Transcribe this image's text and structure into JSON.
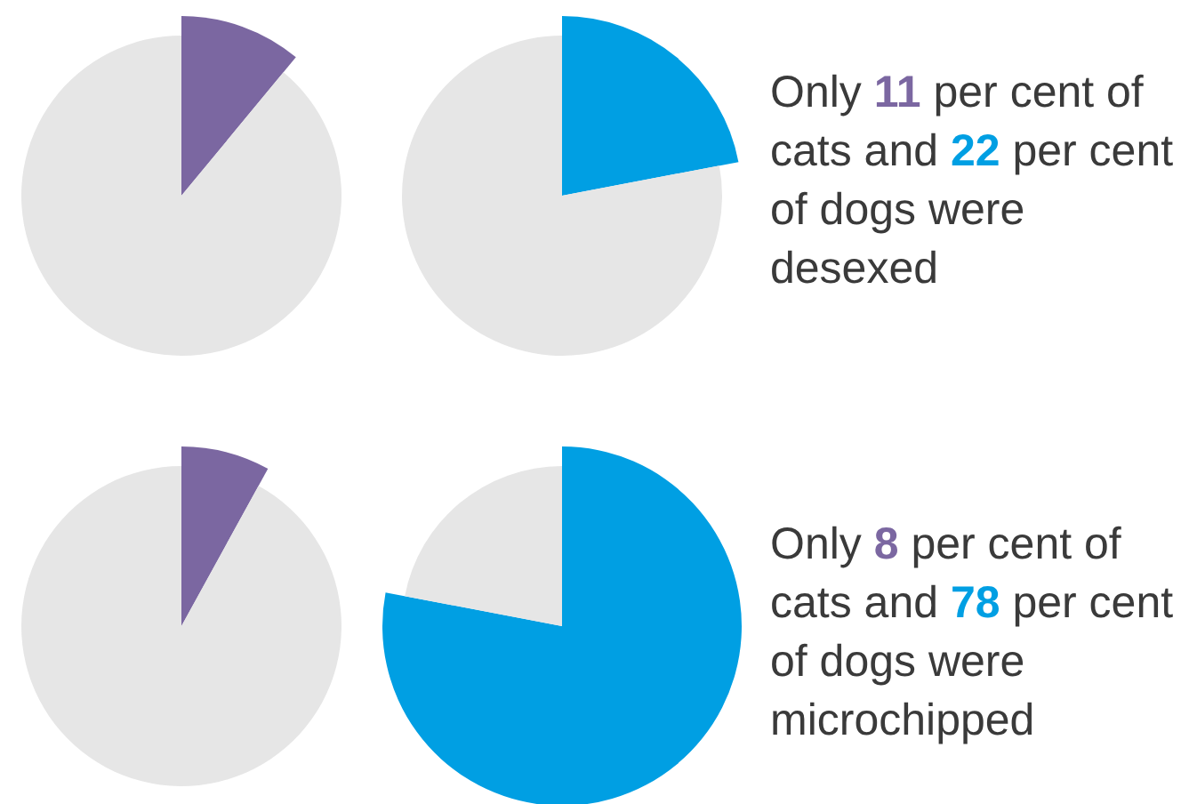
{
  "chart_data": [
    {
      "type": "pie",
      "categories": [
        null,
        null
      ],
      "values": [
        11,
        89
      ],
      "colors": [
        "#7b67a1",
        "#e6e6e6"
      ]
    },
    {
      "type": "pie",
      "categories": [
        null,
        null
      ],
      "values": [
        22,
        78
      ],
      "colors": [
        "#009fe3",
        "#e6e6e6"
      ]
    },
    {
      "type": "other",
      "annotations": [
        "Only 11 per cent of cats and 22 per cent of dogs were desexed"
      ]
    },
    {
      "type": "pie",
      "categories": [
        null,
        null
      ],
      "values": [
        8,
        92
      ],
      "colors": [
        "#7b67a1",
        "#e6e6e6"
      ]
    },
    {
      "type": "pie",
      "categories": [
        null,
        null
      ],
      "values": [
        78,
        22
      ],
      "colors": [
        "#009fe3",
        "#e6e6e6"
      ]
    },
    {
      "type": "other",
      "annotations": [
        "Only 8 per cent of cats and 78 per cent of dogs were microchipped"
      ]
    }
  ]
}
